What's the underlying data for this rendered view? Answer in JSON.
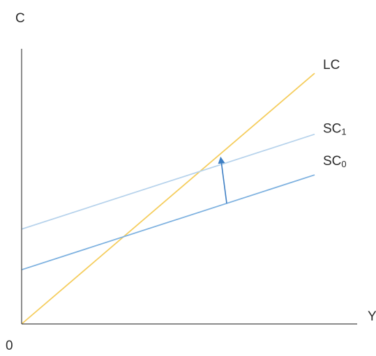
{
  "chart_data": {
    "type": "line",
    "title": "",
    "ylabel": "C",
    "xlabel": "Y",
    "origin_label": "0",
    "xlim": [
      0,
      10
    ],
    "ylim": [
      0,
      10
    ],
    "grid": false,
    "legend": "none",
    "series": [
      {
        "name": "LC",
        "x": [
          0,
          10
        ],
        "y": [
          0,
          9.25
        ],
        "color": "#f5cd5d"
      },
      {
        "name": "SC1",
        "x": [
          0,
          10
        ],
        "y": [
          3.5,
          7.0
        ],
        "color": "#b7d3ec"
      },
      {
        "name": "SC0",
        "x": [
          0,
          10
        ],
        "y": [
          2.0,
          5.5
        ],
        "color": "#7fb2e0"
      }
    ],
    "annotations": [
      {
        "type": "arrow",
        "meaning": "shift from SC0 to SC1",
        "from": [
          7.0,
          4.45
        ],
        "to": [
          6.8,
          6.1
        ],
        "color": "#3e7fc4"
      }
    ]
  }
}
